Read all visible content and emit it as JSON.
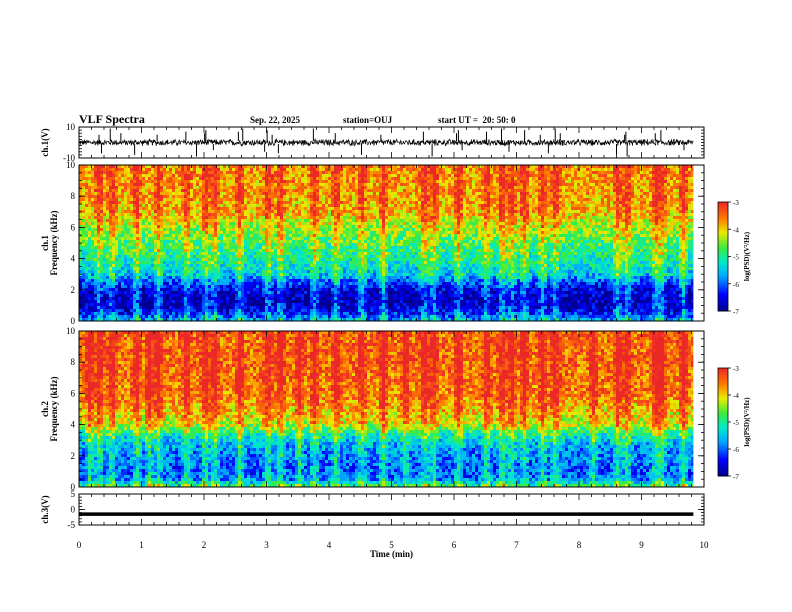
{
  "header": {
    "title": "VLF Spectra",
    "date": "Sep. 22, 2025",
    "station": "station=OUJ",
    "start": "start UT =  20: 50: 0"
  },
  "chart_data": [
    {
      "type": "line",
      "panel": "ch1-waveform",
      "ylabel": "ch.1(V)",
      "ylim": [
        -10,
        10
      ],
      "yticks": [
        -10,
        10
      ],
      "xlim": [
        0,
        10
      ],
      "baseline": 0,
      "noise_amplitude": 2,
      "spike_times_min": [
        0.32,
        0.36,
        0.5,
        0.67,
        0.89,
        1.25,
        1.71,
        1.88,
        2.01,
        2.03,
        2.15,
        2.55,
        2.62,
        2.97,
        3.01,
        3.09,
        3.19,
        3.75,
        4.1,
        4.52,
        4.83,
        5.51,
        5.65,
        6.04,
        6.07,
        6.13,
        6.52,
        6.76,
        6.88,
        7.13,
        7.38,
        7.51,
        7.62,
        7.7,
        8.6,
        8.73,
        8.75,
        8.77,
        9.22,
        9.31,
        9.68
      ]
    },
    {
      "type": "heatmap",
      "panel": "ch1-spectrogram",
      "ylabel": "ch.1\nFrequency (kHz)",
      "ylim": [
        0,
        10
      ],
      "yticks": [
        0,
        2,
        4,
        6,
        8,
        10
      ],
      "xlim": [
        0,
        9.83
      ],
      "colorbar": {
        "label": "log(PSD)(V²/Hz)",
        "range": [
          -7,
          -3
        ],
        "ticks": [
          -3,
          -4,
          -5,
          -6,
          -7
        ]
      },
      "mean_log_psd_profile": [
        {
          "f_khz": 0.0,
          "log_psd": -5.6
        },
        {
          "f_khz": 0.5,
          "log_psd": -6.4
        },
        {
          "f_khz": 1.0,
          "log_psd": -6.8
        },
        {
          "f_khz": 1.5,
          "log_psd": -6.8
        },
        {
          "f_khz": 2.0,
          "log_psd": -6.6
        },
        {
          "f_khz": 2.5,
          "log_psd": -6.1
        },
        {
          "f_khz": 3.0,
          "log_psd": -5.5
        },
        {
          "f_khz": 4.0,
          "log_psd": -5.1
        },
        {
          "f_khz": 5.0,
          "log_psd": -4.8
        },
        {
          "f_khz": 6.0,
          "log_psd": -4.4
        },
        {
          "f_khz": 7.0,
          "log_psd": -3.9
        },
        {
          "f_khz": 8.0,
          "log_psd": -3.8
        },
        {
          "f_khz": 10.0,
          "log_psd": -3.7
        }
      ],
      "impulse_times_min": [
        0.3,
        0.5,
        0.9,
        1.25,
        1.7,
        2.0,
        2.15,
        2.55,
        3.0,
        3.2,
        3.75,
        4.1,
        4.5,
        4.85,
        5.5,
        5.65,
        6.05,
        6.5,
        6.75,
        6.9,
        7.1,
        7.4,
        7.6,
        8.6,
        8.75,
        9.2,
        9.3,
        9.65
      ]
    },
    {
      "type": "heatmap",
      "panel": "ch2-spectrogram",
      "ylabel": "ch.2\nFrequency (kHz)",
      "ylim": [
        0,
        10
      ],
      "yticks": [
        0,
        2,
        4,
        6,
        8,
        10
      ],
      "xlim": [
        0,
        9.83
      ],
      "colorbar": {
        "label": "log(PSD)(V²/Hz)",
        "range": [
          -7,
          -3
        ],
        "ticks": [
          -3,
          -4,
          -5,
          -6,
          -7
        ]
      },
      "mean_log_psd_profile": [
        {
          "f_khz": 0.0,
          "log_psd": -4.8
        },
        {
          "f_khz": 0.5,
          "log_psd": -5.9
        },
        {
          "f_khz": 1.0,
          "log_psd": -6.1
        },
        {
          "f_khz": 1.5,
          "log_psd": -6.0
        },
        {
          "f_khz": 2.0,
          "log_psd": -5.9
        },
        {
          "f_khz": 2.5,
          "log_psd": -5.8
        },
        {
          "f_khz": 3.0,
          "log_psd": -5.5
        },
        {
          "f_khz": 3.5,
          "log_psd": -5.0
        },
        {
          "f_khz": 4.0,
          "log_psd": -4.3
        },
        {
          "f_khz": 5.0,
          "log_psd": -3.9
        },
        {
          "f_khz": 6.0,
          "log_psd": -3.6
        },
        {
          "f_khz": 8.0,
          "log_psd": -3.5
        },
        {
          "f_khz": 10.0,
          "log_psd": -3.5
        }
      ],
      "impulse_times_min": [
        0.15,
        0.3,
        0.5,
        0.9,
        1.1,
        1.25,
        1.7,
        2.0,
        2.15,
        2.55,
        3.0,
        3.2,
        3.5,
        3.75,
        4.1,
        4.5,
        4.85,
        5.2,
        5.5,
        5.65,
        6.05,
        6.5,
        6.75,
        6.9,
        7.1,
        7.4,
        7.6,
        8.2,
        8.6,
        8.75,
        9.2,
        9.3,
        9.65
      ]
    },
    {
      "type": "line",
      "panel": "ch3-waveform",
      "ylabel": "ch.3(V)",
      "ylim": [
        -5,
        5
      ],
      "yticks": [
        -5,
        0,
        5
      ],
      "xlim": [
        0,
        10
      ],
      "constant_value": -1.5
    }
  ],
  "xaxis": {
    "label": "Time (min)",
    "ticks": [
      "0",
      "1",
      "2",
      "3",
      "4",
      "5",
      "6",
      "7",
      "8",
      "9",
      "10"
    ]
  }
}
